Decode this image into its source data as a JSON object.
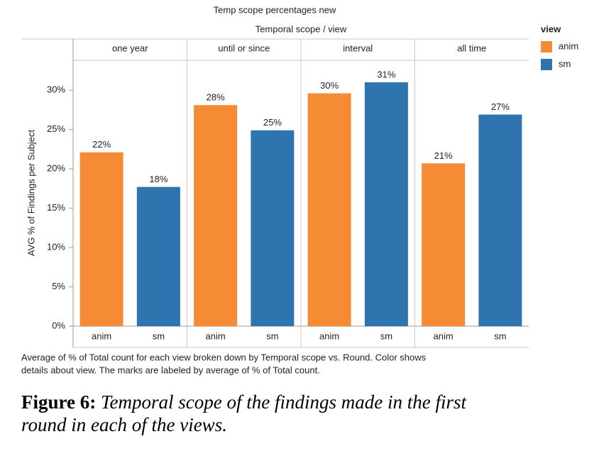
{
  "chart_data": {
    "type": "bar",
    "title": "Temp scope percentages new",
    "column_header": "Temporal scope  /  view",
    "y_label": "AVG % of Findings per Subject",
    "categories": [
      "one year",
      "until or since",
      "interval",
      "all time"
    ],
    "series": [
      {
        "name": "anim",
        "color": "#f58b35",
        "values": [
          22.1,
          28.1,
          29.6,
          20.7
        ],
        "value_labels": [
          "22%",
          "28%",
          "30%",
          "21%"
        ]
      },
      {
        "name": "sm",
        "color": "#2e75b0",
        "values": [
          17.7,
          24.9,
          31.0,
          26.9
        ],
        "value_labels": [
          "18%",
          "25%",
          "31%",
          "27%"
        ]
      }
    ],
    "ylim": [
      0,
      33.8
    ],
    "yticks": [
      {
        "value": 0,
        "label": "0%"
      },
      {
        "value": 5,
        "label": "5%"
      },
      {
        "value": 10,
        "label": "10%"
      },
      {
        "value": 15,
        "label": "15%"
      },
      {
        "value": 20,
        "label": "20%"
      },
      {
        "value": 25,
        "label": "25%"
      },
      {
        "value": 30,
        "label": "30%"
      }
    ],
    "legend_title": "view",
    "legend": "top-right",
    "caption": [
      "Average of % of Total count for each view broken down by Temporal scope vs. Round.  Color shows",
      "details about view.  The marks are labeled by average of % of Total count."
    ]
  },
  "figure": {
    "label": "Figure 6:",
    "caption": [
      "Temporal scope of the findings made in the first",
      "round in each of the views."
    ]
  }
}
